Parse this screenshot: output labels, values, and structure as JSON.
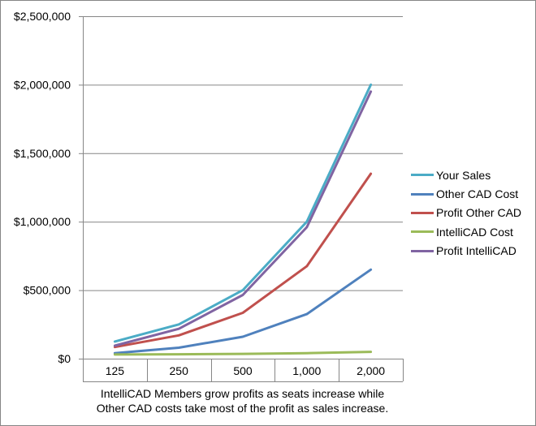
{
  "chart_data": {
    "type": "line",
    "categories": [
      "125",
      "250",
      "500",
      "1,000",
      "2,000"
    ],
    "caption_lines": [
      "IntelliCAD Members grow profits as seats increase while",
      "Other CAD costs take most of the profit as sales increase."
    ],
    "ylim": [
      0,
      2500000
    ],
    "yticks": [
      0,
      500000,
      1000000,
      1500000,
      2000000,
      2500000
    ],
    "ytick_labels": [
      "$0",
      "$500,000",
      "$1,000,000",
      "$1,500,000",
      "$2,000,000",
      "$2,500,000"
    ],
    "grid": true,
    "legend_position": "right",
    "series": [
      {
        "name": "Your Sales",
        "color": "#4bacc6",
        "values": [
          125000,
          250000,
          500000,
          1000000,
          2000000
        ]
      },
      {
        "name": "Other CAD Cost",
        "color": "#4f81bd",
        "values": [
          40000,
          80000,
          160000,
          325000,
          650000
        ]
      },
      {
        "name": "Profit Other CAD",
        "color": "#c0504d",
        "values": [
          85000,
          170000,
          335000,
          675000,
          1350000
        ]
      },
      {
        "name": "IntelliCAD Cost",
        "color": "#9bbb59",
        "values": [
          30000,
          32000,
          35000,
          40000,
          50000
        ]
      },
      {
        "name": "Profit IntelliCAD",
        "color": "#8064a2",
        "values": [
          95000,
          218000,
          465000,
          960000,
          1950000
        ]
      }
    ]
  }
}
